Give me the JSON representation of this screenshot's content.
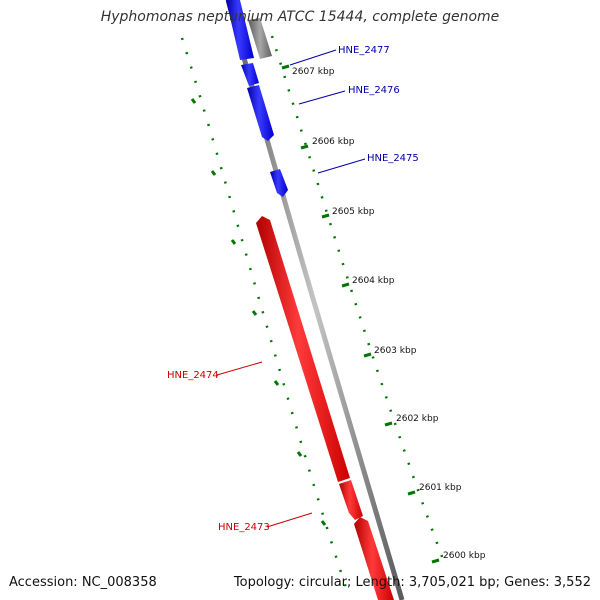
{
  "title": "Hyphomonas neptunium ATCC 15444, complete genome",
  "footer": {
    "accession": "Accession: NC_008358",
    "summary": "Topology: circular; Length: 3,705,021 bp; Genes: 3,552"
  },
  "colors": {
    "forward_gene": "#ff0000",
    "reverse_gene": "#0000ff",
    "other_feature": "#7f7f7f",
    "ticks": "#007700",
    "backbone": "#808080"
  },
  "ticks": [
    {
      "kbp": 2607,
      "label": "2607 kbp"
    },
    {
      "kbp": 2606,
      "label": "2606 kbp"
    },
    {
      "kbp": 2605,
      "label": "2605 kbp"
    },
    {
      "kbp": 2604,
      "label": "2604 kbp"
    },
    {
      "kbp": 2603,
      "label": "2603 kbp"
    },
    {
      "kbp": 2602,
      "label": "2602 kbp"
    },
    {
      "kbp": 2601,
      "label": "2601 kbp"
    },
    {
      "kbp": 2600,
      "label": "2600 kbp"
    }
  ],
  "genes": [
    {
      "name": "HNE_2477",
      "strand": "reverse"
    },
    {
      "name": "HNE_2476",
      "strand": "reverse"
    },
    {
      "name": "HNE_2475",
      "strand": "reverse"
    },
    {
      "name": "HNE_2474",
      "strand": "forward"
    },
    {
      "name": "HNE_2473",
      "strand": "forward"
    }
  ]
}
